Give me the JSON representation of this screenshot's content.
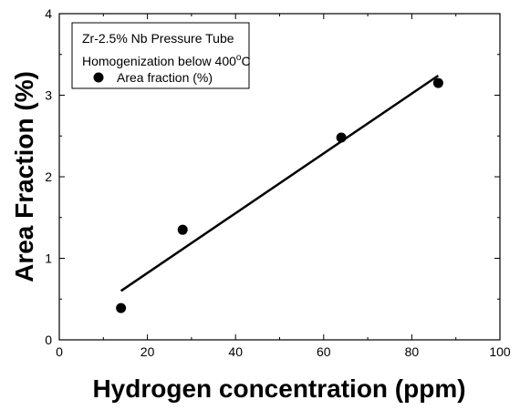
{
  "chart_data": {
    "type": "scatter",
    "xlabel": "Hydrogen concentration (ppm)",
    "ylabel": "Area Fraction (%)",
    "xlim": [
      0,
      100
    ],
    "ylim": [
      0,
      4
    ],
    "xticks": [
      "0",
      "20",
      "40",
      "60",
      "80",
      "100"
    ],
    "yticks": [
      "0",
      "1",
      "2",
      "3",
      "4"
    ],
    "grid": false,
    "legend": {
      "placement": "top-left",
      "line1": "Zr-2.5% Nb Pressure Tube",
      "line2_main": "Homogenization below 400",
      "line2_sup": "o",
      "line2_unit": "C",
      "series_label": "Area fraction (%)"
    },
    "series": [
      {
        "name": "Area fraction (%)",
        "marker": "circle",
        "x": [
          14,
          28,
          64,
          86
        ],
        "y": [
          0.39,
          1.35,
          2.48,
          3.15
        ]
      }
    ],
    "fit_line": {
      "x": [
        14,
        86
      ],
      "y": [
        0.6,
        3.24
      ]
    },
    "colors": {
      "marker": "#000000",
      "line": "#000000",
      "axis": "#000000"
    }
  }
}
